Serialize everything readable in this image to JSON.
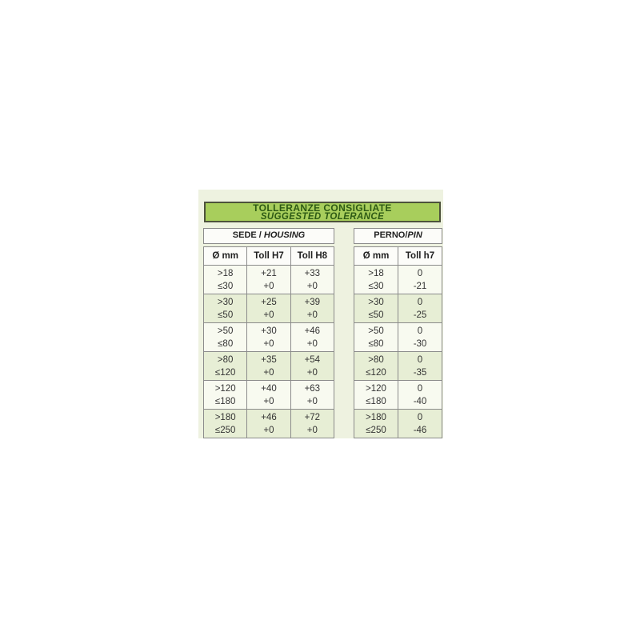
{
  "title": {
    "line1": "TOLLERANZE CONSIGLIATE",
    "line2": "SUGGESTED TOLERANCE"
  },
  "colors": {
    "panel_bg": "#eef2e0",
    "band_bg": "#a8ce5c",
    "band_border": "#4d523c",
    "band_text": "#2d5a14",
    "cell_border": "#8b8b8b",
    "row_even_bg": "#e7eed5",
    "row_odd_bg": "#f8faf0"
  },
  "housing": {
    "header_plain": "SEDE / ",
    "header_italic": "HOUSING",
    "columns": [
      "Ø mm",
      "Toll H7",
      "Toll H8"
    ],
    "rows": [
      {
        "dia": [
          ">18",
          "≤30"
        ],
        "h7": [
          "+21",
          "+0"
        ],
        "h8": [
          "+33",
          "+0"
        ]
      },
      {
        "dia": [
          ">30",
          "≤50"
        ],
        "h7": [
          "+25",
          "+0"
        ],
        "h8": [
          "+39",
          "+0"
        ]
      },
      {
        "dia": [
          ">50",
          "≤80"
        ],
        "h7": [
          "+30",
          "+0"
        ],
        "h8": [
          "+46",
          "+0"
        ]
      },
      {
        "dia": [
          ">80",
          "≤120"
        ],
        "h7": [
          "+35",
          "+0"
        ],
        "h8": [
          "+54",
          "+0"
        ]
      },
      {
        "dia": [
          ">120",
          "≤180"
        ],
        "h7": [
          "+40",
          "+0"
        ],
        "h8": [
          "+63",
          "+0"
        ]
      },
      {
        "dia": [
          ">180",
          "≤250"
        ],
        "h7": [
          "+46",
          "+0"
        ],
        "h8": [
          "+72",
          "+0"
        ]
      }
    ]
  },
  "pin": {
    "header_plain": "PERNO/",
    "header_italic": "PIN",
    "columns": [
      "Ø mm",
      "Toll h7"
    ],
    "rows": [
      {
        "dia": [
          ">18",
          "≤30"
        ],
        "h7": [
          "0",
          "-21"
        ]
      },
      {
        "dia": [
          ">30",
          "≤50"
        ],
        "h7": [
          "0",
          "-25"
        ]
      },
      {
        "dia": [
          ">50",
          "≤80"
        ],
        "h7": [
          "0",
          "-30"
        ]
      },
      {
        "dia": [
          ">80",
          "≤120"
        ],
        "h7": [
          "0",
          "-35"
        ]
      },
      {
        "dia": [
          ">120",
          "≤180"
        ],
        "h7": [
          "0",
          "-40"
        ]
      },
      {
        "dia": [
          ">180",
          "≤250"
        ],
        "h7": [
          "0",
          "-46"
        ]
      }
    ]
  }
}
